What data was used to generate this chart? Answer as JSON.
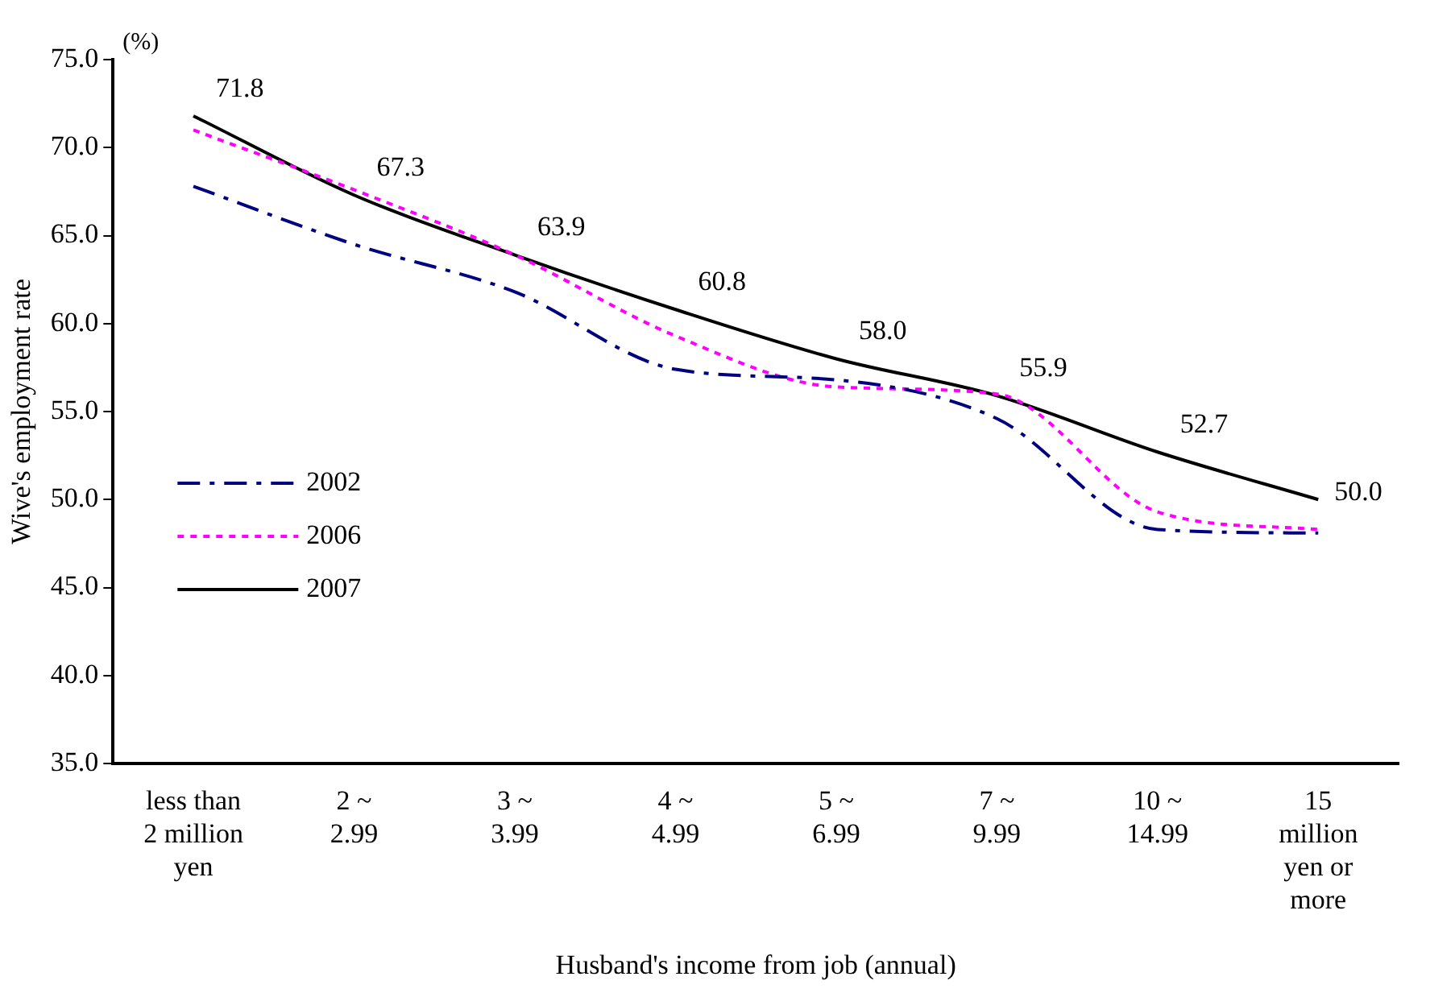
{
  "chart_data": {
    "type": "line",
    "xlabel": "Husband's income from job (annual)",
    "ylabel": "Wive's employment rate",
    "annotations": [
      "(%)"
    ],
    "categories": [
      "less than\n2 million\nyen",
      "2 ~\n2.99",
      "3 ~\n3.99",
      "4 ~\n4.99",
      "5 ~\n6.99",
      "7 ~\n9.99",
      "10 ~\n14.99",
      "15\nmillion\nyen or\nmore"
    ],
    "series": [
      {
        "name": "2002",
        "color": "#000080",
        "line_style": "dashed",
        "values": [
          67.8,
          64.5,
          61.8,
          57.4,
          56.8,
          54.6,
          48.3,
          48.1
        ]
      },
      {
        "name": "2006",
        "color": "#ff00ff",
        "line_style": "dotted",
        "values": [
          71.0,
          67.6,
          63.9,
          59.3,
          56.4,
          56.0,
          49.3,
          48.3
        ]
      },
      {
        "name": "2007",
        "color": "#000000",
        "line_style": "solid",
        "values": [
          71.8,
          67.3,
          63.9,
          60.8,
          58.0,
          55.9,
          52.7,
          50.0
        ],
        "value_labels": [
          "71.8",
          "67.3",
          "63.9",
          "60.8",
          "58.0",
          "55.9",
          "52.7",
          "50.0"
        ]
      }
    ],
    "ylim": [
      35,
      75
    ],
    "yticks": [
      {
        "value": 35,
        "label": "35.0"
      },
      {
        "value": 40,
        "label": "40.0"
      },
      {
        "value": 45,
        "label": "45.0"
      },
      {
        "value": 50,
        "label": "50.0"
      },
      {
        "value": 55,
        "label": "55.0"
      },
      {
        "value": 60,
        "label": "60.0"
      },
      {
        "value": 65,
        "label": "65.0"
      },
      {
        "value": 70,
        "label": "70.0"
      },
      {
        "value": 75,
        "label": "75.0"
      }
    ],
    "grid": false,
    "legend": "left",
    "marker": "none"
  }
}
